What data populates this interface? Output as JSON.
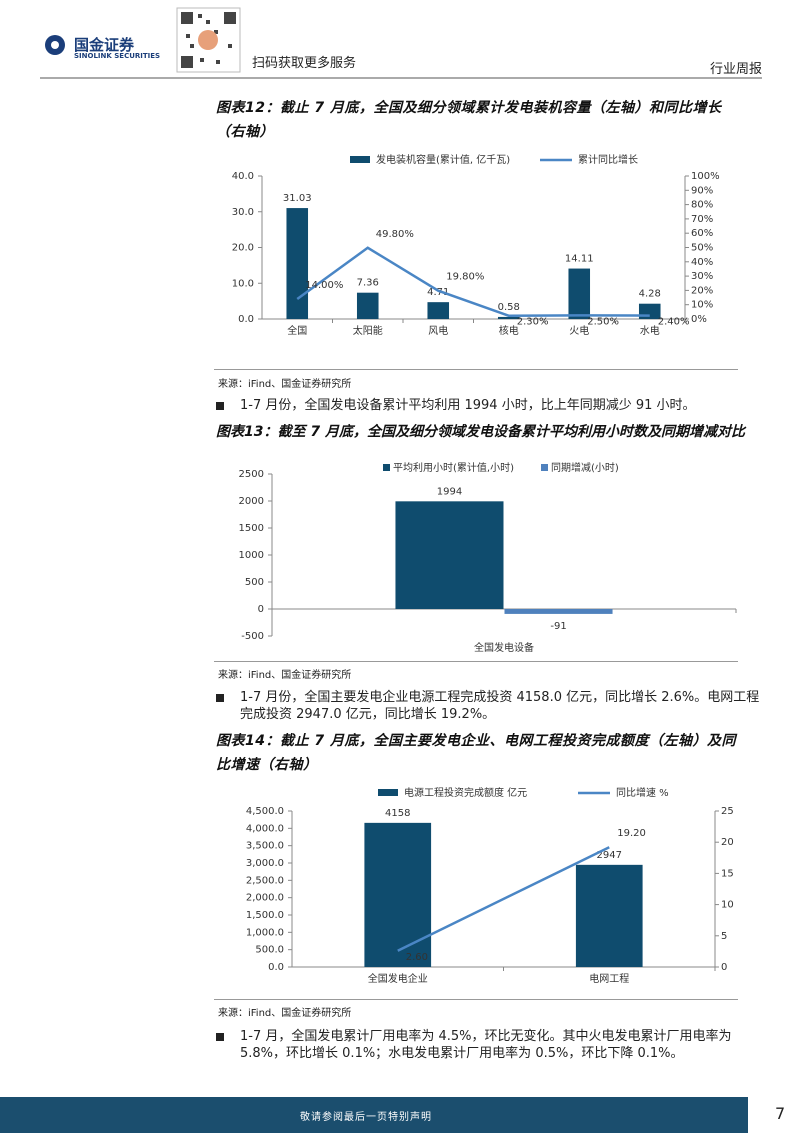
{
  "header": {
    "logo_text": "国金证券",
    "logo_sub": "SINOLINK SECURITIES",
    "qr_caption": "扫码获取更多服务",
    "report_type": "行业周报"
  },
  "chart_data": [
    {
      "type": "bar_line",
      "title": "图表12：截止 7 月底，全国及细分领域累计发电装机容量（左轴）和同比增长（右轴）",
      "categories": [
        "全国",
        "太阳能",
        "风电",
        "核电",
        "火电",
        "水电"
      ],
      "series": [
        {
          "name": "发电装机容量(累计值, 亿千瓦)",
          "color": "#0f4c6e",
          "kind": "bar",
          "values": [
            31.03,
            7.36,
            4.71,
            0.58,
            14.11,
            4.28
          ]
        },
        {
          "name": "累计同比增长",
          "color": "#4a86c5",
          "kind": "line",
          "axis": "y2",
          "values": [
            14.0,
            49.8,
            19.8,
            2.3,
            2.5,
            2.4
          ],
          "value_labels": [
            "14.00%",
            "49.80%",
            "19.80%",
            "2.30%",
            "2.50%",
            "2.40%"
          ]
        }
      ],
      "ylim": [
        0,
        40
      ],
      "yticks": [
        {
          "value": 0,
          "label": "0.0"
        },
        {
          "value": 10,
          "label": "10.0"
        },
        {
          "value": 20,
          "label": "20.0"
        },
        {
          "value": 30,
          "label": "30.0"
        },
        {
          "value": 40,
          "label": "40.0"
        }
      ],
      "y2lim": [
        0,
        100
      ],
      "y2ticks": [
        {
          "value": 0,
          "label": "0%"
        },
        {
          "value": 10,
          "label": "10%"
        },
        {
          "value": 20,
          "label": "20%"
        },
        {
          "value": 30,
          "label": "30%"
        },
        {
          "value": 40,
          "label": "40%"
        },
        {
          "value": 50,
          "label": "50%"
        },
        {
          "value": 60,
          "label": "60%"
        },
        {
          "value": 70,
          "label": "70%"
        },
        {
          "value": 80,
          "label": "80%"
        },
        {
          "value": 90,
          "label": "90%"
        },
        {
          "value": 100,
          "label": "100%"
        }
      ]
    },
    {
      "type": "bar",
      "title": "图表13：截至 7 月底，全国及细分领域发电设备累计平均利用小时数及同期增减对比",
      "categories": [
        "全国发电设备"
      ],
      "series": [
        {
          "name": "平均利用小时(累计值,小时)",
          "color": "#0f4c6e",
          "values": [
            1994
          ]
        },
        {
          "name": "同期增减(小时)",
          "color": "#4f81bd",
          "values": [
            -91
          ]
        }
      ],
      "ylim": [
        -500,
        2500
      ],
      "yticks": [
        -500,
        0,
        500,
        1000,
        1500,
        2000,
        2500
      ]
    },
    {
      "type": "bar_line",
      "title": "图表14：截止 7 月底，全国主要发电企业、电网工程投资完成额度（左轴）及同比增速（右轴）",
      "categories": [
        "全国发电企业",
        "电网工程"
      ],
      "series": [
        {
          "name": "电源工程投资完成额度 亿元",
          "color": "#0f4c6e",
          "kind": "bar",
          "values": [
            4158,
            2947
          ]
        },
        {
          "name": "同比增速 %",
          "color": "#4a86c5",
          "kind": "line",
          "axis": "y2",
          "values": [
            2.6,
            19.2
          ],
          "value_labels": [
            "2.60",
            "19.20"
          ]
        }
      ],
      "ylim": [
        0,
        4500
      ],
      "yticks": [
        {
          "value": 0,
          "label": "0.0"
        },
        {
          "value": 500,
          "label": "500.0"
        },
        {
          "value": 1000,
          "label": "1,000.0"
        },
        {
          "value": 1500,
          "label": "1,500.0"
        },
        {
          "value": 2000,
          "label": "2,000.0"
        },
        {
          "value": 2500,
          "label": "2,500.0"
        },
        {
          "value": 3000,
          "label": "3,000.0"
        },
        {
          "value": 3500,
          "label": "3,500.0"
        },
        {
          "value": 4000,
          "label": "4,000.0"
        },
        {
          "value": 4500,
          "label": "4,500.0"
        }
      ],
      "y2lim": [
        0,
        25
      ],
      "y2ticks": [
        0,
        5,
        10,
        15,
        20,
        25
      ]
    }
  ],
  "sources": [
    "来源：iFind、国金证券研究所",
    "来源：iFind、国金证券研究所",
    "来源：iFind、国金证券研究所"
  ],
  "bullets": [
    "1-7 月份，全国发电设备累计平均利用 1994 小时，比上年同期减少 91 小时。",
    "1-7 月份，全国主要发电企业电源工程完成投资 4158.0 亿元，同比增长 2.6%。电网工程完成投资 2947.0 亿元，同比增长 19.2%。",
    "1-7 月，全国发电累计厂用电率为 4.5%，环比无变化。其中火电发电累计厂用电率为 5.8%，环比增长 0.1%；水电发电累计厂用电率为 0.5%，环比下降 0.1%。"
  ],
  "footer": {
    "disclaimer": "敬请参阅最后一页特别声明",
    "page": "7"
  }
}
